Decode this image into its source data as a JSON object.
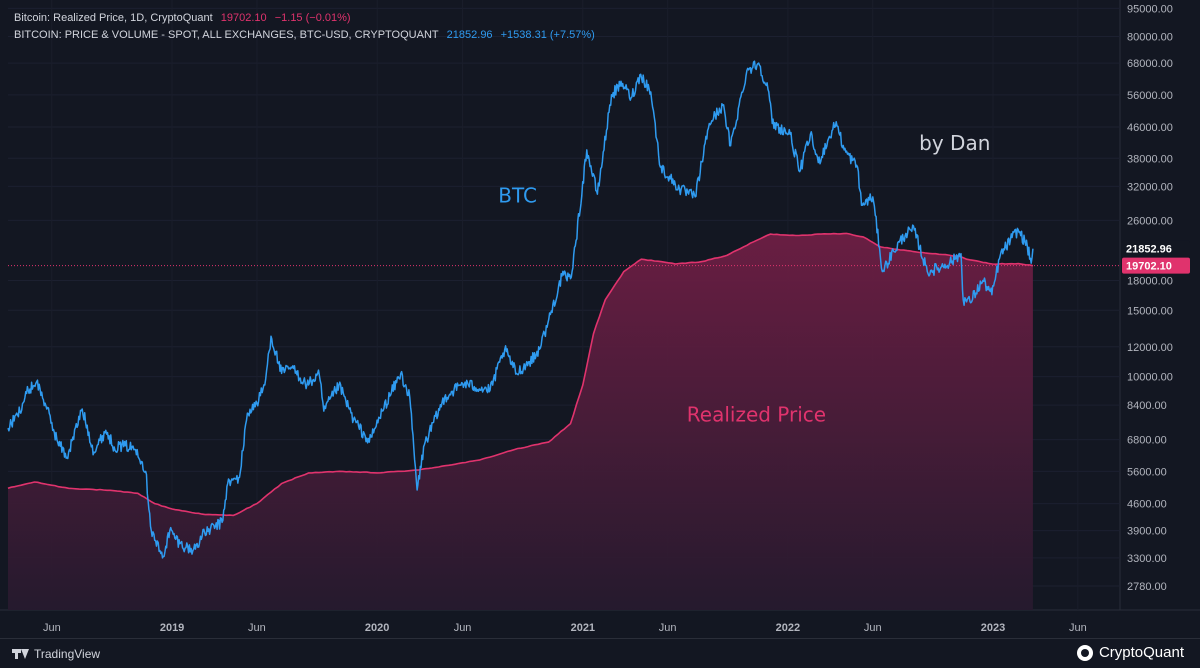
{
  "legend": {
    "row1": {
      "name": "Bitcoin: Realized Price, 1D, CryptoQuant",
      "value": "19702.10",
      "change": "−1.15 (−0.01%)"
    },
    "row2": {
      "name": "BITCOIN: PRICE & VOLUME - SPOT, ALL EXCHANGES, BTC-USD, CRYPTOQUANT",
      "value": "21852.96",
      "change": "+1538.31 (+7.57%)"
    }
  },
  "colors": {
    "background": "#131722",
    "btc_line": "#2f9bf0",
    "realized_line": "#e0336d",
    "realized_fill_top": "#6e1e44",
    "realized_fill_bottom": "#261a2e",
    "axis_text": "#b2b5be",
    "annotation_white": "#d1d4dc"
  },
  "chart_data": {
    "type": "line",
    "yscale": "log",
    "ylim": [
      2400,
      100000
    ],
    "xlim": [
      "2018-03-15",
      "2023-08-15"
    ],
    "y_ticks": [
      "95000.00",
      "80000.00",
      "68000.00",
      "56000.00",
      "46000.00",
      "38000.00",
      "32000.00",
      "26000.00",
      "18000.00",
      "15000.00",
      "12000.00",
      "10000.00",
      "8400.00",
      "6800.00",
      "5600.00",
      "4600.00",
      "3900.00",
      "3300.00",
      "2780.00"
    ],
    "x_ticks": [
      {
        "date": "2018-06-01",
        "label": "Jun",
        "bold": false
      },
      {
        "date": "2019-01-01",
        "label": "2019",
        "bold": true
      },
      {
        "date": "2019-06-01",
        "label": "Jun",
        "bold": false
      },
      {
        "date": "2020-01-01",
        "label": "2020",
        "bold": true
      },
      {
        "date": "2020-06-01",
        "label": "Jun",
        "bold": false
      },
      {
        "date": "2021-01-01",
        "label": "2021",
        "bold": true
      },
      {
        "date": "2021-06-01",
        "label": "Jun",
        "bold": false
      },
      {
        "date": "2022-01-01",
        "label": "2022",
        "bold": true
      },
      {
        "date": "2022-06-01",
        "label": "Jun",
        "bold": false
      },
      {
        "date": "2023-01-01",
        "label": "2023",
        "bold": true
      },
      {
        "date": "2023-06-01",
        "label": "Jun",
        "bold": false
      }
    ],
    "price_labels": [
      {
        "value": 21852.96,
        "label": "21852.96",
        "style": "dark"
      },
      {
        "value": 19702.1,
        "label": "19702.10",
        "style": "red"
      }
    ],
    "annotations": [
      {
        "text": "BTC",
        "x": "2020-09-07",
        "y": 29000,
        "color": "#2f9bf0",
        "size": 20
      },
      {
        "text": "Realized Price",
        "x": "2021-11-06",
        "y": 7600,
        "color": "#e0336d",
        "size": 20
      },
      {
        "text": "by Dan",
        "x": "2022-10-25",
        "y": 40000,
        "color": "#d1d4dc",
        "size": 20
      }
    ],
    "series": [
      {
        "name": "BTC",
        "role": "price",
        "points": [
          [
            "2018-03-15",
            7300
          ],
          [
            "2018-04-01",
            7900
          ],
          [
            "2018-04-20",
            9200
          ],
          [
            "2018-05-05",
            9700
          ],
          [
            "2018-05-20",
            8500
          ],
          [
            "2018-06-10",
            6800
          ],
          [
            "2018-06-28",
            6100
          ],
          [
            "2018-07-25",
            8200
          ],
          [
            "2018-08-15",
            6300
          ],
          [
            "2018-09-05",
            7200
          ],
          [
            "2018-09-20",
            6500
          ],
          [
            "2018-10-10",
            6550
          ],
          [
            "2018-10-31",
            6400
          ],
          [
            "2018-11-15",
            5600
          ],
          [
            "2018-11-25",
            3900
          ],
          [
            "2018-12-15",
            3300
          ],
          [
            "2018-12-28",
            3900
          ],
          [
            "2019-01-15",
            3600
          ],
          [
            "2019-02-07",
            3450
          ],
          [
            "2019-02-28",
            3850
          ],
          [
            "2019-03-31",
            4100
          ],
          [
            "2019-04-10",
            5200
          ],
          [
            "2019-05-01",
            5400
          ],
          [
            "2019-05-15",
            8000
          ],
          [
            "2019-06-01",
            8500
          ],
          [
            "2019-06-15",
            9500
          ],
          [
            "2019-06-26",
            12800
          ],
          [
            "2019-07-15",
            10200
          ],
          [
            "2019-08-01",
            10600
          ],
          [
            "2019-08-29",
            9500
          ],
          [
            "2019-09-20",
            10100
          ],
          [
            "2019-09-28",
            8100
          ],
          [
            "2019-10-25",
            9500
          ],
          [
            "2019-11-20",
            7700
          ],
          [
            "2019-12-18",
            6700
          ],
          [
            "2020-01-10",
            8100
          ],
          [
            "2020-02-12",
            10200
          ],
          [
            "2020-02-28",
            8800
          ],
          [
            "2020-03-12",
            5000
          ],
          [
            "2020-03-25",
            6600
          ],
          [
            "2020-04-30",
            8800
          ],
          [
            "2020-06-01",
            9600
          ],
          [
            "2020-07-20",
            9200
          ],
          [
            "2020-08-15",
            11800
          ],
          [
            "2020-09-05",
            10200
          ],
          [
            "2020-10-10",
            11400
          ],
          [
            "2020-10-25",
            13000
          ],
          [
            "2020-11-25",
            18500
          ],
          [
            "2020-12-10",
            18200
          ],
          [
            "2020-12-20",
            23000
          ],
          [
            "2021-01-08",
            40000
          ],
          [
            "2021-01-27",
            30500
          ],
          [
            "2021-02-21",
            56000
          ],
          [
            "2021-03-13",
            60000
          ],
          [
            "2021-03-28",
            55000
          ],
          [
            "2021-04-14",
            63500
          ],
          [
            "2021-05-02",
            57000
          ],
          [
            "2021-05-19",
            36000
          ],
          [
            "2021-06-22",
            31500
          ],
          [
            "2021-07-20",
            30000
          ],
          [
            "2021-08-14",
            47000
          ],
          [
            "2021-09-07",
            52500
          ],
          [
            "2021-09-21",
            41000
          ],
          [
            "2021-10-20",
            65000
          ],
          [
            "2021-11-10",
            68000
          ],
          [
            "2021-11-28",
            57000
          ],
          [
            "2021-12-04",
            47000
          ],
          [
            "2022-01-05",
            44000
          ],
          [
            "2022-01-22",
            35000
          ],
          [
            "2022-02-10",
            44000
          ],
          [
            "2022-02-24",
            37000
          ],
          [
            "2022-03-28",
            47500
          ],
          [
            "2022-04-11",
            40000
          ],
          [
            "2022-05-05",
            36000
          ],
          [
            "2022-05-12",
            28500
          ],
          [
            "2022-06-01",
            30000
          ],
          [
            "2022-06-13",
            22000
          ],
          [
            "2022-06-18",
            19000
          ],
          [
            "2022-07-08",
            21500
          ],
          [
            "2022-07-30",
            24000
          ],
          [
            "2022-08-14",
            24500
          ],
          [
            "2022-09-06",
            19000
          ],
          [
            "2022-09-30",
            19500
          ],
          [
            "2022-10-25",
            20500
          ],
          [
            "2022-11-05",
            21200
          ],
          [
            "2022-11-09",
            16000
          ],
          [
            "2022-11-21",
            15800
          ],
          [
            "2022-12-14",
            18000
          ],
          [
            "2022-12-30",
            16500
          ],
          [
            "2023-01-14",
            21000
          ],
          [
            "2023-02-04",
            23400
          ],
          [
            "2023-02-15",
            24500
          ],
          [
            "2023-03-03",
            22200
          ],
          [
            "2023-03-10",
            20000
          ],
          [
            "2023-03-13",
            21852.96
          ]
        ]
      },
      {
        "name": "Realized Price",
        "role": "realized",
        "points": [
          [
            "2018-03-15",
            5050
          ],
          [
            "2018-05-01",
            5250
          ],
          [
            "2018-07-01",
            5050
          ],
          [
            "2018-09-01",
            5000
          ],
          [
            "2018-11-01",
            4900
          ],
          [
            "2018-12-01",
            4600
          ],
          [
            "2019-01-01",
            4450
          ],
          [
            "2019-03-01",
            4300
          ],
          [
            "2019-04-20",
            4280
          ],
          [
            "2019-06-01",
            4600
          ],
          [
            "2019-07-15",
            5200
          ],
          [
            "2019-09-01",
            5550
          ],
          [
            "2019-11-01",
            5600
          ],
          [
            "2020-01-01",
            5550
          ],
          [
            "2020-03-15",
            5650
          ],
          [
            "2020-05-01",
            5800
          ],
          [
            "2020-07-01",
            6000
          ],
          [
            "2020-09-01",
            6400
          ],
          [
            "2020-11-01",
            6700
          ],
          [
            "2020-12-10",
            7500
          ],
          [
            "2021-01-01",
            9500
          ],
          [
            "2021-01-20",
            13000
          ],
          [
            "2021-02-10",
            16000
          ],
          [
            "2021-03-15",
            19000
          ],
          [
            "2021-04-15",
            20500
          ],
          [
            "2021-05-20",
            20200
          ],
          [
            "2021-06-15",
            19900
          ],
          [
            "2021-08-01",
            20200
          ],
          [
            "2021-09-15",
            21000
          ],
          [
            "2021-11-01",
            22800
          ],
          [
            "2021-12-01",
            23900
          ],
          [
            "2022-01-15",
            23700
          ],
          [
            "2022-03-01",
            23900
          ],
          [
            "2022-04-15",
            24000
          ],
          [
            "2022-05-15",
            23500
          ],
          [
            "2022-06-15",
            22100
          ],
          [
            "2022-08-01",
            21600
          ],
          [
            "2022-09-15",
            21200
          ],
          [
            "2022-11-01",
            20900
          ],
          [
            "2022-11-15",
            20500
          ],
          [
            "2022-12-31",
            19900
          ],
          [
            "2023-02-15",
            19950
          ],
          [
            "2023-03-13",
            19702.1
          ]
        ]
      }
    ]
  },
  "brand": {
    "tradingview": "TradingView",
    "cryptoquant": "CryptoQuant"
  }
}
